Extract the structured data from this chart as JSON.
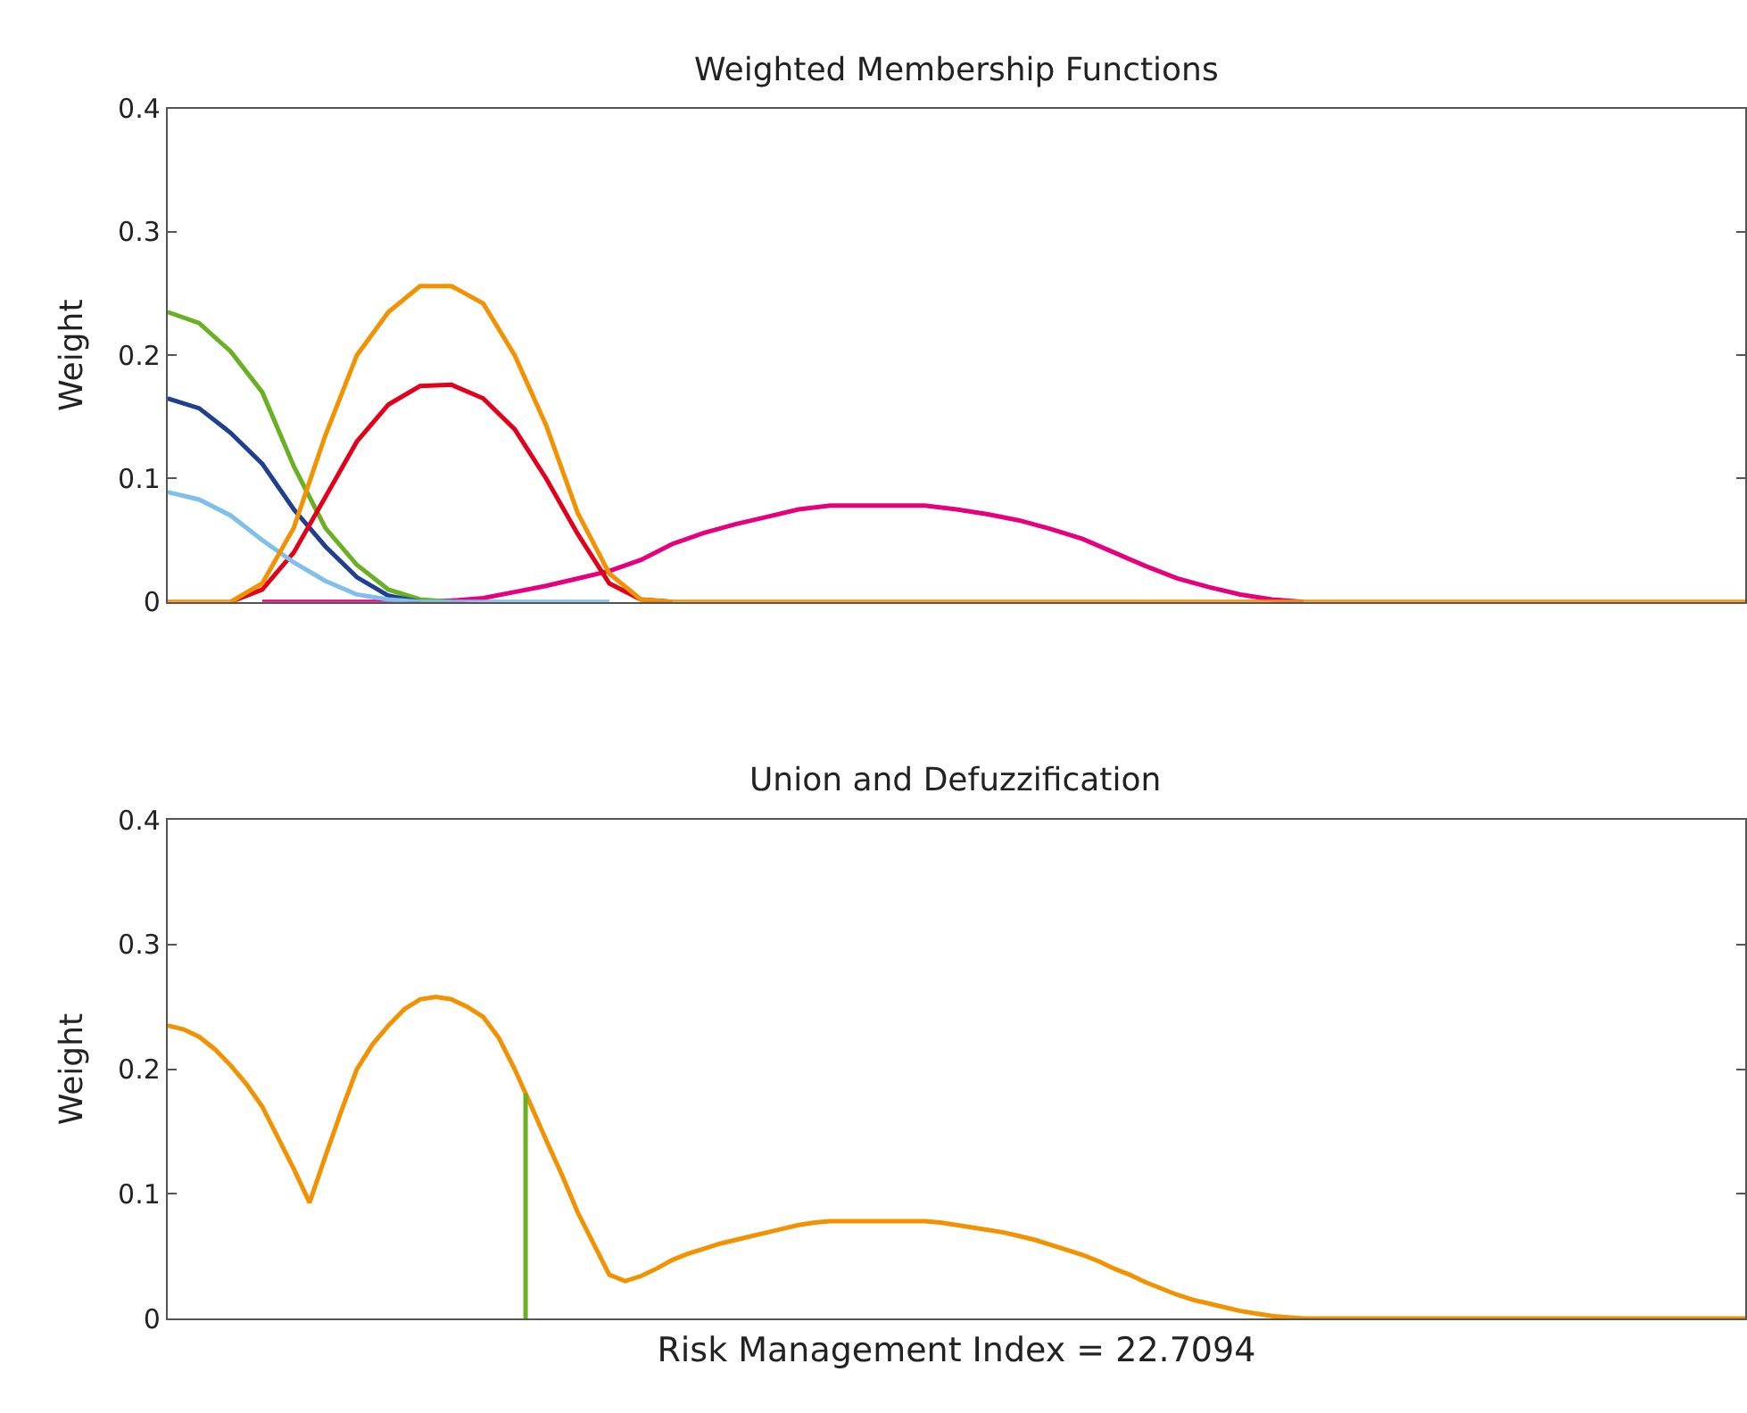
{
  "chart_data": [
    {
      "type": "line",
      "title": "Weighted Membership Functions",
      "ylabel": "Weight",
      "categories": [
        null,
        null,
        null,
        null,
        null,
        null,
        null,
        null,
        null,
        null,
        null,
        null,
        null,
        null,
        null,
        null,
        null,
        null,
        null,
        null,
        null,
        null,
        null,
        null,
        null,
        null,
        null,
        null,
        null,
        null,
        null,
        null,
        null,
        null,
        null,
        null,
        null,
        null,
        null,
        null,
        null,
        null,
        null,
        null,
        null,
        null,
        null,
        null,
        null,
        null,
        null
      ],
      "series": [
        {
          "color": "#e6007e",
          "values": [
            null,
            null,
            null,
            0,
            0,
            0,
            0,
            0,
            0,
            0.001,
            0.003,
            0.008,
            0.013,
            0.019,
            0.025,
            0.034,
            0.047,
            0.056,
            0.063,
            0.069,
            0.075,
            0.078,
            0.078,
            0.078,
            0.078,
            0.075,
            0.071,
            0.066,
            0.059,
            0.051,
            0.04,
            0.029,
            0.019,
            0.012,
            0.006,
            0.002,
            0,
            null,
            null,
            null,
            null,
            null,
            null,
            null,
            null,
            null,
            null,
            null,
            null,
            null,
            null
          ]
        },
        {
          "color": "#6ab023",
          "values": [
            0.235,
            0.226,
            0.203,
            0.17,
            0.11,
            0.06,
            0.03,
            0.01,
            0.002,
            0,
            null,
            null,
            null,
            null,
            null,
            null,
            null,
            null,
            null,
            null,
            null,
            null,
            null,
            null,
            null,
            null,
            null,
            null,
            null,
            null,
            null,
            null,
            null,
            null,
            null,
            null,
            null,
            null,
            null,
            null,
            null,
            null,
            null,
            null,
            null,
            null,
            null,
            null,
            null,
            null,
            null
          ]
        },
        {
          "color": "#1f3f8f",
          "values": [
            0.165,
            0.157,
            0.137,
            0.112,
            0.075,
            0.045,
            0.02,
            0.005,
            0,
            null,
            null,
            null,
            null,
            null,
            null,
            null,
            null,
            null,
            null,
            null,
            null,
            null,
            null,
            null,
            null,
            null,
            null,
            null,
            null,
            null,
            null,
            null,
            null,
            null,
            null,
            null,
            null,
            null,
            null,
            null,
            null,
            null,
            null,
            null,
            null,
            null,
            null,
            null,
            null,
            null,
            null
          ]
        },
        {
          "color": "#e2001a",
          "values": [
            null,
            null,
            0,
            0.01,
            0.04,
            0.085,
            0.13,
            0.16,
            0.175,
            0.176,
            0.165,
            0.14,
            0.1,
            0.055,
            0.015,
            0.002,
            0,
            null,
            null,
            null,
            null,
            null,
            null,
            null,
            null,
            null,
            null,
            null,
            null,
            null,
            null,
            null,
            null,
            null,
            null,
            null,
            null,
            null,
            null,
            null,
            null,
            null,
            null,
            null,
            null,
            null,
            null,
            null,
            null,
            null,
            null
          ]
        },
        {
          "color": "#7fbfea",
          "values": [
            0.089,
            0.083,
            0.07,
            0.05,
            0.032,
            0.017,
            0.006,
            0.002,
            0,
            0,
            0,
            0,
            0,
            0,
            0,
            null,
            null,
            null,
            null,
            null,
            null,
            null,
            null,
            null,
            null,
            null,
            null,
            null,
            null,
            null,
            null,
            null,
            null,
            null,
            null,
            null,
            null,
            null,
            null,
            null,
            null,
            null,
            null,
            null,
            null,
            null,
            null,
            null,
            null,
            null,
            null
          ]
        },
        {
          "color": "#f39200",
          "values": [
            0,
            0,
            0,
            0.015,
            0.06,
            0.135,
            0.2,
            0.235,
            0.256,
            0.256,
            0.242,
            0.2,
            0.143,
            0.072,
            0.023,
            0.002,
            0,
            0,
            0,
            0,
            0,
            0,
            0,
            0,
            0,
            0,
            0,
            0,
            0,
            0,
            0,
            0,
            0,
            0,
            0,
            0,
            0,
            0,
            0,
            0,
            0,
            0,
            0,
            0,
            0,
            0,
            0,
            0,
            0,
            0,
            0
          ]
        }
      ],
      "ylim": [
        0,
        0.4
      ],
      "yticks": [
        0,
        0.1,
        0.2,
        0.3,
        0.4
      ],
      "tick_labels": "y"
    },
    {
      "type": "line",
      "title": "Union and Defuzzification",
      "ylabel": "Weight",
      "xlabel": "Risk Management Index = 22.7094",
      "categories": [
        null,
        null,
        null,
        null,
        null,
        null,
        null,
        null,
        null,
        null,
        null,
        null,
        null,
        null,
        null,
        null,
        null,
        null,
        null,
        null,
        null,
        null,
        null,
        null,
        null,
        null,
        null,
        null,
        null,
        null,
        null,
        null,
        null,
        null,
        null,
        null,
        null,
        null,
        null,
        null,
        null,
        null,
        null,
        null,
        null,
        null,
        null,
        null,
        null,
        null,
        null,
        null,
        null,
        null,
        null,
        null,
        null,
        null,
        null,
        null,
        null,
        null,
        null,
        null,
        null,
        null,
        null,
        null,
        null,
        null,
        null,
        null,
        null,
        null,
        null,
        null,
        null,
        null,
        null,
        null,
        null,
        null,
        null,
        null,
        null,
        null,
        null,
        null,
        null,
        null,
        null,
        null,
        null,
        null,
        null,
        null,
        null,
        null,
        null,
        null,
        null
      ],
      "series": [
        {
          "color": "#f39200",
          "values": [
            0.235,
            0.232,
            0.226,
            0.216,
            0.203,
            0.188,
            0.17,
            0.145,
            0.12,
            0.093,
            0.13,
            0.166,
            0.2,
            0.22,
            0.235,
            0.248,
            0.256,
            0.258,
            0.256,
            0.25,
            0.242,
            0.225,
            0.2,
            0.172,
            0.143,
            0.115,
            0.085,
            0.06,
            0.035,
            0.03,
            0.034,
            0.04,
            0.047,
            0.052,
            0.056,
            0.06,
            0.063,
            0.066,
            0.069,
            0.072,
            0.075,
            0.077,
            0.078,
            0.078,
            0.078,
            0.078,
            0.078,
            0.078,
            0.078,
            0.077,
            0.075,
            0.073,
            0.071,
            0.069,
            0.066,
            0.063,
            0.059,
            0.055,
            0.051,
            0.046,
            0.04,
            0.035,
            0.029,
            0.024,
            0.019,
            0.015,
            0.012,
            0.009,
            0.006,
            0.004,
            0.002,
            0.001,
            0,
            0,
            0,
            0,
            0,
            0,
            0,
            0,
            0,
            0,
            0,
            0,
            0,
            0,
            0,
            0,
            0,
            0,
            0,
            0,
            0,
            0,
            0,
            0,
            0,
            0,
            0,
            0,
            0
          ]
        }
      ],
      "ylim": [
        0,
        0.4
      ],
      "yticks": [
        0,
        0.1,
        0.2,
        0.3,
        0.4
      ],
      "tick_labels": "y"
    }
  ]
}
